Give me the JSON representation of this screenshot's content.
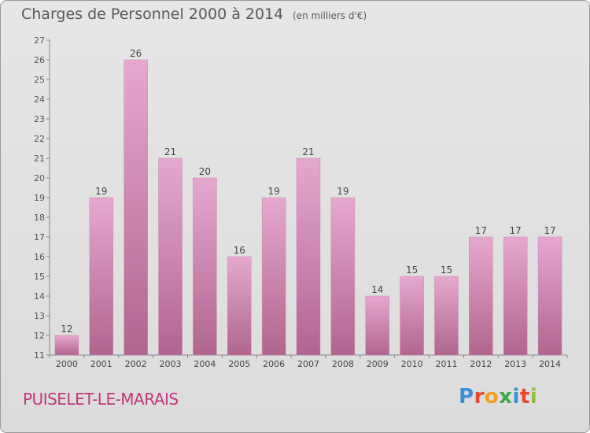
{
  "header": {
    "title": "Charges de Personnel 2000 à 2014",
    "subtitle": "(en milliers d'€)"
  },
  "footer": {
    "city": "PUISELET-LE-MARAIS",
    "logo": "Proxiti"
  },
  "colors": {
    "bar_light": "#e6a8cf",
    "bar_dark": "#b0658f",
    "city_text": "#c0387a",
    "logo_letters": [
      "#3b8fd4",
      "#e8472b",
      "#f0a020",
      "#3aa74a",
      "#3b8fd4",
      "#e8472b",
      "#8fc23a"
    ]
  },
  "chart_data": {
    "type": "bar",
    "title": "Charges de Personnel 2000 à 2014",
    "subtitle": "(en milliers d'€)",
    "categories": [
      "2000",
      "2001",
      "2002",
      "2003",
      "2004",
      "2005",
      "2006",
      "2007",
      "2008",
      "2009",
      "2010",
      "2011",
      "2012",
      "2013",
      "2014"
    ],
    "values": [
      12,
      19,
      26,
      21,
      20,
      16,
      19,
      21,
      19,
      14,
      15,
      15,
      17,
      17,
      17
    ],
    "ylim": [
      11,
      27
    ],
    "yticks": [
      11,
      12,
      13,
      14,
      15,
      16,
      17,
      18,
      19,
      20,
      21,
      22,
      23,
      24,
      25,
      26,
      27
    ],
    "grid": false,
    "data_labels": true
  }
}
